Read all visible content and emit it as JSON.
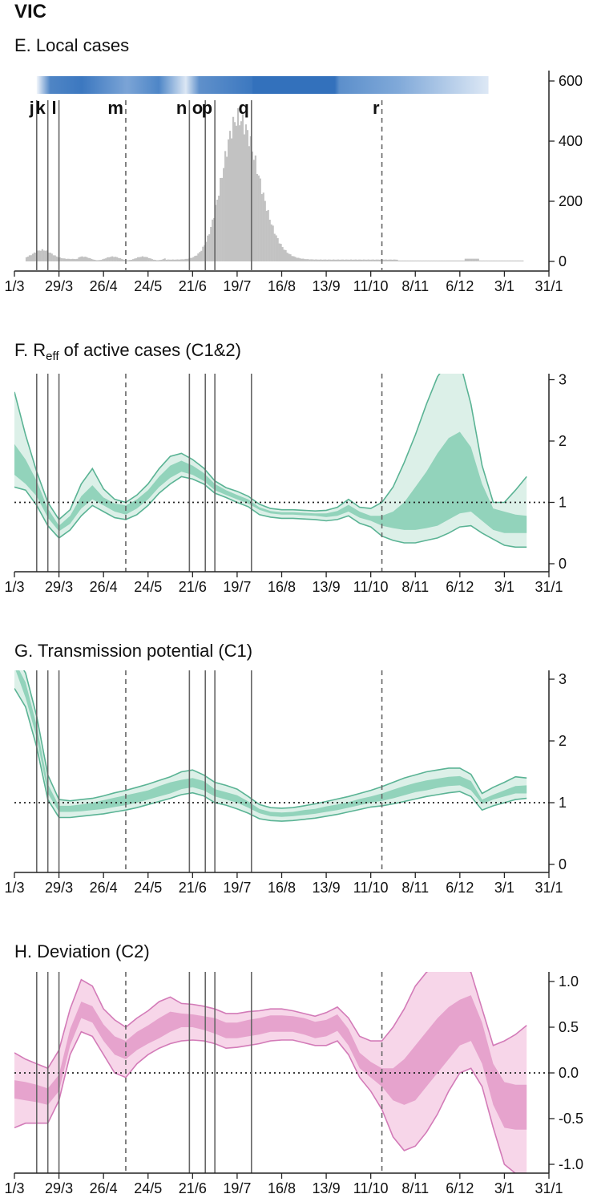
{
  "state_label": "VIC",
  "x_tick_labels": [
    "1/3",
    "29/3",
    "26/4",
    "24/5",
    "21/6",
    "19/7",
    "16/8",
    "13/9",
    "11/10",
    "8/11",
    "6/12",
    "3/1",
    "31/1"
  ],
  "events": [
    {
      "label": "j",
      "day": 14,
      "style": "solid"
    },
    {
      "label": "k",
      "day": 21,
      "style": "solid"
    },
    {
      "label": "l",
      "day": 28,
      "style": "solid"
    },
    {
      "label": "m",
      "day": 70,
      "style": "dashed"
    },
    {
      "label": "n",
      "day": 110,
      "style": "solid"
    },
    {
      "label": "o",
      "day": 120,
      "style": "solid"
    },
    {
      "label": "p",
      "day": 126,
      "style": "solid"
    },
    {
      "label": "q",
      "day": 149,
      "style": "solid"
    },
    {
      "label": "r",
      "day": 231,
      "style": "dashed"
    }
  ],
  "colors": {
    "cases_bar": "#c2c2c2",
    "testing_band_dark": "#2f6db8",
    "testing_band_light": "#dbe6f4",
    "reff_outer": "#dcf0e8",
    "reff_inner": "#92d3bb",
    "reff_edge": "#5ab394",
    "dev_outer": "#f7d6e9",
    "dev_inner": "#e6a3cd",
    "dev_edge": "#d37bb8",
    "event_line": "#666666",
    "axis": "#222222"
  },
  "chart_data": [
    {
      "type": "bar",
      "panel_title": "E. Local cases",
      "x_unit": "days since 1/3",
      "x_ticks": [
        "1/3",
        "29/3",
        "26/4",
        "24/5",
        "21/6",
        "19/7",
        "16/8",
        "13/9",
        "11/10",
        "8/11",
        "6/12",
        "3/1",
        "31/1"
      ],
      "ylim": [
        0,
        650
      ],
      "y_ticks": [
        0,
        200,
        400,
        600
      ],
      "series": [
        {
          "peak_day": 140,
          "peak_value": 470
        }
      ],
      "notes": "daily local cases; testing intensity band shown above the bars"
    },
    {
      "type": "area",
      "panel_title_prefix": "F. R",
      "panel_title_sub": "eff",
      "panel_title_suffix": " of active cases (C1&2)",
      "ylim": [
        -0.1,
        3.1
      ],
      "y_ticks": [
        0,
        1,
        2,
        3
      ],
      "reference_line": 1,
      "x": [
        0,
        7,
        14,
        21,
        28,
        35,
        42,
        49,
        56,
        63,
        70,
        77,
        84,
        91,
        98,
        105,
        112,
        119,
        126,
        133,
        140,
        147,
        154,
        161,
        168,
        175,
        182,
        189,
        196,
        203,
        210,
        217,
        224,
        231,
        238,
        245,
        252,
        259,
        266,
        273,
        280,
        287,
        294,
        301,
        308,
        315,
        322
      ],
      "series": [
        {
          "band": "50%",
          "lower": [
            1.45,
            1.3,
            1.1,
            0.75,
            0.53,
            0.65,
            0.9,
            1.05,
            0.95,
            0.85,
            0.8,
            0.9,
            1.05,
            1.25,
            1.4,
            1.5,
            1.45,
            1.35,
            1.2,
            1.12,
            1.05,
            0.98,
            0.88,
            0.82,
            0.8,
            0.8,
            0.79,
            0.78,
            0.76,
            0.78,
            0.85,
            0.75,
            0.7,
            0.62,
            0.58,
            0.55,
            0.55,
            0.58,
            0.62,
            0.72,
            0.82,
            0.85,
            0.7,
            0.55,
            0.5,
            0.5,
            0.5
          ],
          "upper": [
            1.95,
            1.7,
            1.35,
            0.9,
            0.62,
            0.78,
            1.1,
            1.28,
            1.08,
            0.98,
            0.95,
            1.05,
            1.2,
            1.42,
            1.6,
            1.68,
            1.6,
            1.48,
            1.3,
            1.2,
            1.12,
            1.05,
            0.92,
            0.86,
            0.84,
            0.84,
            0.83,
            0.82,
            0.82,
            0.86,
            0.96,
            0.85,
            0.78,
            0.78,
            0.85,
            1.0,
            1.25,
            1.5,
            1.8,
            2.05,
            2.15,
            1.9,
            1.3,
            0.9,
            0.85,
            0.8,
            0.78
          ]
        },
        {
          "band": "90%",
          "lower": [
            1.25,
            1.2,
            0.95,
            0.62,
            0.42,
            0.55,
            0.78,
            0.95,
            0.85,
            0.75,
            0.72,
            0.8,
            0.95,
            1.15,
            1.3,
            1.42,
            1.38,
            1.3,
            1.15,
            1.08,
            1.0,
            0.93,
            0.8,
            0.76,
            0.74,
            0.74,
            0.73,
            0.72,
            0.7,
            0.72,
            0.78,
            0.66,
            0.6,
            0.45,
            0.38,
            0.34,
            0.34,
            0.38,
            0.42,
            0.5,
            0.6,
            0.62,
            0.5,
            0.4,
            0.3,
            0.27,
            0.27
          ],
          "upper": [
            2.8,
            2.1,
            1.5,
            1.0,
            0.72,
            0.88,
            1.3,
            1.55,
            1.22,
            1.05,
            1.0,
            1.12,
            1.3,
            1.55,
            1.75,
            1.8,
            1.7,
            1.56,
            1.35,
            1.24,
            1.18,
            1.1,
            0.97,
            0.9,
            0.88,
            0.88,
            0.87,
            0.86,
            0.87,
            0.92,
            1.05,
            0.92,
            0.9,
            1.0,
            1.25,
            1.65,
            2.1,
            2.6,
            3.05,
            3.3,
            3.3,
            2.6,
            1.6,
            1.0,
            1.0,
            1.2,
            1.42
          ]
        }
      ]
    },
    {
      "type": "area",
      "panel_title": "G. Transmission potential (C1)",
      "ylim": [
        -0.1,
        3.1
      ],
      "y_ticks": [
        0,
        1,
        2,
        3
      ],
      "reference_line": 1,
      "x": [
        0,
        7,
        14,
        21,
        28,
        35,
        42,
        49,
        56,
        63,
        70,
        77,
        84,
        91,
        98,
        105,
        112,
        119,
        126,
        133,
        140,
        147,
        154,
        161,
        168,
        175,
        182,
        189,
        196,
        203,
        210,
        217,
        224,
        231,
        238,
        245,
        252,
        259,
        266,
        273,
        280,
        287,
        294,
        301,
        308,
        315,
        322
      ],
      "series": [
        {
          "band": "50%",
          "lower": [
            3.2,
            2.7,
            2.05,
            1.15,
            0.85,
            0.85,
            0.86,
            0.88,
            0.9,
            0.93,
            0.96,
            1.0,
            1.05,
            1.1,
            1.15,
            1.22,
            1.25,
            1.2,
            1.1,
            1.05,
            1.0,
            0.92,
            0.83,
            0.78,
            0.77,
            0.78,
            0.8,
            0.82,
            0.85,
            0.88,
            0.92,
            0.96,
            1.0,
            1.03,
            1.07,
            1.12,
            1.17,
            1.2,
            1.24,
            1.27,
            1.28,
            1.2,
            0.98,
            1.05,
            1.1,
            1.15,
            1.15
          ],
          "upper": [
            3.3,
            2.95,
            2.25,
            1.3,
            0.95,
            0.95,
            0.97,
            1.0,
            1.04,
            1.08,
            1.12,
            1.16,
            1.2,
            1.27,
            1.33,
            1.37,
            1.4,
            1.35,
            1.22,
            1.17,
            1.12,
            1.02,
            0.9,
            0.85,
            0.84,
            0.85,
            0.88,
            0.9,
            0.94,
            0.97,
            1.01,
            1.06,
            1.1,
            1.15,
            1.21,
            1.27,
            1.32,
            1.36,
            1.39,
            1.42,
            1.43,
            1.35,
            1.05,
            1.13,
            1.2,
            1.27,
            1.28
          ]
        },
        {
          "band": "90%",
          "lower": [
            2.85,
            2.55,
            1.9,
            1.05,
            0.76,
            0.76,
            0.78,
            0.8,
            0.82,
            0.85,
            0.88,
            0.92,
            0.97,
            1.02,
            1.07,
            1.13,
            1.16,
            1.11,
            1.0,
            0.96,
            0.9,
            0.83,
            0.74,
            0.71,
            0.7,
            0.71,
            0.73,
            0.75,
            0.78,
            0.81,
            0.85,
            0.89,
            0.93,
            0.95,
            0.98,
            1.02,
            1.06,
            1.1,
            1.13,
            1.16,
            1.18,
            1.1,
            0.88,
            0.95,
            1.0,
            1.05,
            1.07
          ],
          "upper": [
            3.4,
            3.1,
            2.4,
            1.45,
            1.05,
            1.03,
            1.05,
            1.07,
            1.11,
            1.16,
            1.2,
            1.25,
            1.3,
            1.36,
            1.42,
            1.5,
            1.53,
            1.45,
            1.33,
            1.28,
            1.22,
            1.1,
            0.97,
            0.92,
            0.91,
            0.92,
            0.95,
            0.98,
            1.02,
            1.06,
            1.1,
            1.15,
            1.2,
            1.26,
            1.33,
            1.4,
            1.45,
            1.5,
            1.53,
            1.56,
            1.56,
            1.46,
            1.15,
            1.25,
            1.33,
            1.42,
            1.4
          ]
        }
      ]
    },
    {
      "type": "area",
      "panel_title": "H. Deviation (C2)",
      "ylim": [
        -1.1,
        1.1
      ],
      "y_ticks": [
        -1.0,
        -0.5,
        0.0,
        0.5,
        1.0
      ],
      "y_tick_labels": [
        "-1.0",
        "-0.5",
        "0.0",
        "0.5",
        "1.0"
      ],
      "reference_line": 0,
      "x": [
        0,
        7,
        14,
        21,
        28,
        35,
        42,
        49,
        56,
        63,
        70,
        77,
        84,
        91,
        98,
        105,
        112,
        119,
        126,
        133,
        140,
        147,
        154,
        161,
        168,
        175,
        182,
        189,
        196,
        203,
        210,
        217,
        224,
        231,
        238,
        245,
        252,
        259,
        266,
        273,
        280,
        287,
        294,
        301,
        308,
        315,
        322
      ],
      "series": [
        {
          "band": "50%",
          "lower": [
            -0.28,
            -0.3,
            -0.32,
            -0.35,
            -0.2,
            0.3,
            0.6,
            0.55,
            0.35,
            0.2,
            0.15,
            0.25,
            0.32,
            0.38,
            0.45,
            0.5,
            0.5,
            0.47,
            0.43,
            0.38,
            0.38,
            0.4,
            0.42,
            0.45,
            0.45,
            0.45,
            0.42,
            0.38,
            0.4,
            0.46,
            0.3,
            0.05,
            -0.05,
            -0.15,
            -0.3,
            -0.35,
            -0.3,
            -0.15,
            0.0,
            0.15,
            0.3,
            0.35,
            0.1,
            -0.35,
            -0.6,
            -0.62,
            -0.62
          ],
          "upper": [
            -0.08,
            -0.1,
            -0.13,
            -0.17,
            -0.02,
            0.48,
            0.78,
            0.73,
            0.53,
            0.4,
            0.35,
            0.45,
            0.52,
            0.6,
            0.67,
            0.65,
            0.64,
            0.62,
            0.6,
            0.55,
            0.55,
            0.58,
            0.6,
            0.63,
            0.63,
            0.62,
            0.6,
            0.56,
            0.58,
            0.64,
            0.48,
            0.22,
            0.12,
            0.05,
            0.05,
            0.15,
            0.3,
            0.45,
            0.6,
            0.72,
            0.8,
            0.85,
            0.55,
            0.1,
            -0.1,
            -0.13,
            -0.13
          ]
        },
        {
          "band": "90%",
          "lower": [
            -0.6,
            -0.55,
            -0.55,
            -0.55,
            -0.3,
            0.2,
            0.45,
            0.4,
            0.2,
            0.0,
            -0.05,
            0.1,
            0.2,
            0.27,
            0.32,
            0.35,
            0.36,
            0.35,
            0.32,
            0.27,
            0.28,
            0.3,
            0.32,
            0.35,
            0.36,
            0.36,
            0.33,
            0.3,
            0.3,
            0.35,
            0.2,
            -0.05,
            -0.2,
            -0.4,
            -0.7,
            -0.85,
            -0.8,
            -0.65,
            -0.45,
            -0.2,
            0.0,
            0.05,
            -0.15,
            -0.6,
            -1.0,
            -1.1,
            -1.1
          ],
          "upper": [
            0.22,
            0.15,
            0.1,
            0.05,
            0.25,
            0.7,
            1.02,
            0.95,
            0.7,
            0.58,
            0.5,
            0.6,
            0.68,
            0.78,
            0.83,
            0.76,
            0.75,
            0.73,
            0.7,
            0.65,
            0.65,
            0.67,
            0.68,
            0.7,
            0.7,
            0.68,
            0.65,
            0.62,
            0.66,
            0.72,
            0.6,
            0.4,
            0.35,
            0.35,
            0.5,
            0.7,
            0.95,
            1.1,
            1.2,
            1.25,
            1.25,
            1.1,
            0.7,
            0.3,
            0.35,
            0.42,
            0.52
          ]
        }
      ]
    }
  ]
}
